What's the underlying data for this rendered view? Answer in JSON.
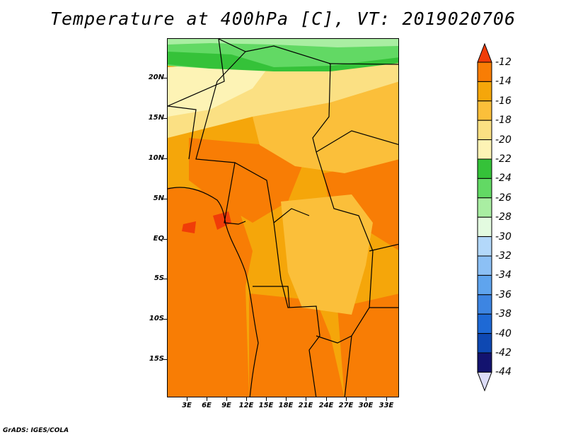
{
  "title": "Temperature at 400hPa [C], VT: 2019020706",
  "footer": "GrADS: IGES/COLA",
  "axes": {
    "y_ticks": [
      "20N",
      "15N",
      "10N",
      "5N",
      "EQ",
      "5S",
      "10S",
      "15S"
    ],
    "x_ticks": [
      "3E",
      "6E",
      "9E",
      "12E",
      "15E",
      "18E",
      "21E",
      "24E",
      "27E",
      "30E",
      "33E"
    ]
  },
  "colorbar": {
    "labels": [
      "-12",
      "-14",
      "-16",
      "-18",
      "-20",
      "-22",
      "-24",
      "-26",
      "-28",
      "-30",
      "-32",
      "-34",
      "-36",
      "-38",
      "-40",
      "-42",
      "-44"
    ],
    "colors": [
      "#f03c08",
      "#f87d05",
      "#f5a60a",
      "#fbbf3a",
      "#fbe083",
      "#fdf3b5",
      "#35c239",
      "#62d964",
      "#a9eea2",
      "#e3fbe0",
      "#b3d8fa",
      "#8cc0f5",
      "#5fa4ee",
      "#3d85e2",
      "#1e69d5",
      "#0e48b2",
      "#13136f",
      "#dcdcf8"
    ]
  },
  "map": {
    "palette": {
      "deep_orange": "#f87d05",
      "mid_orange": "#f5a60a",
      "light_orange": "#fbbf3a",
      "pale_yellow": "#fbe083",
      "cream": "#fdf3b5",
      "green": "#35c239",
      "light_green": "#62d964",
      "pale_green": "#a9eea2",
      "red_orange": "#f03c08"
    }
  }
}
